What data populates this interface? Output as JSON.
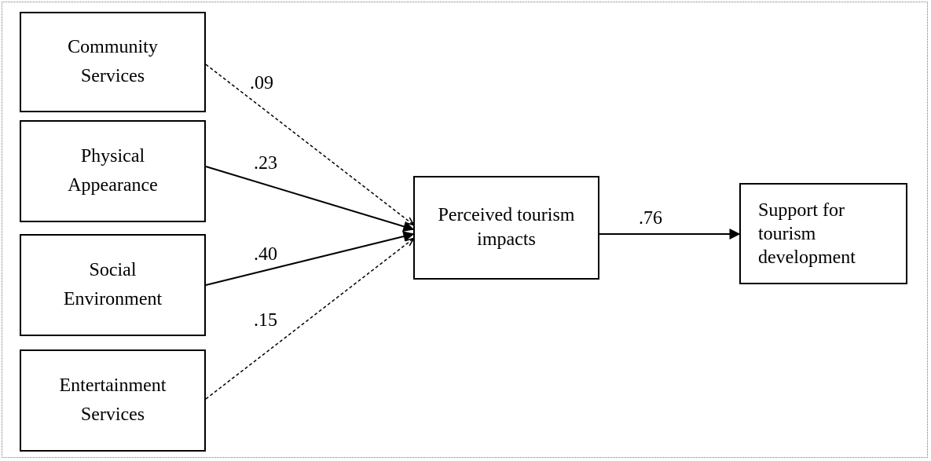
{
  "nodes": {
    "community": {
      "lines": [
        "Community",
        "Services"
      ]
    },
    "physical": {
      "lines": [
        "Physical",
        "Appearance"
      ]
    },
    "social": {
      "lines": [
        "Social",
        "Environment"
      ]
    },
    "entertainment": {
      "lines": [
        "Entertainment",
        "Services"
      ]
    },
    "impacts": {
      "lines": [
        "Perceived tourism",
        "impacts"
      ]
    },
    "support": {
      "lines": [
        "Support for",
        "tourism",
        "development"
      ]
    }
  },
  "edges": {
    "community_to_impacts": {
      "coefficient": ".09",
      "significant": false
    },
    "physical_to_impacts": {
      "coefficient": ".23",
      "significant": true
    },
    "social_to_impacts": {
      "coefficient": ".40",
      "significant": true
    },
    "entertainment_to_impacts": {
      "coefficient": ".15",
      "significant": false
    },
    "impacts_to_support": {
      "coefficient": ".76",
      "significant": true
    }
  }
}
